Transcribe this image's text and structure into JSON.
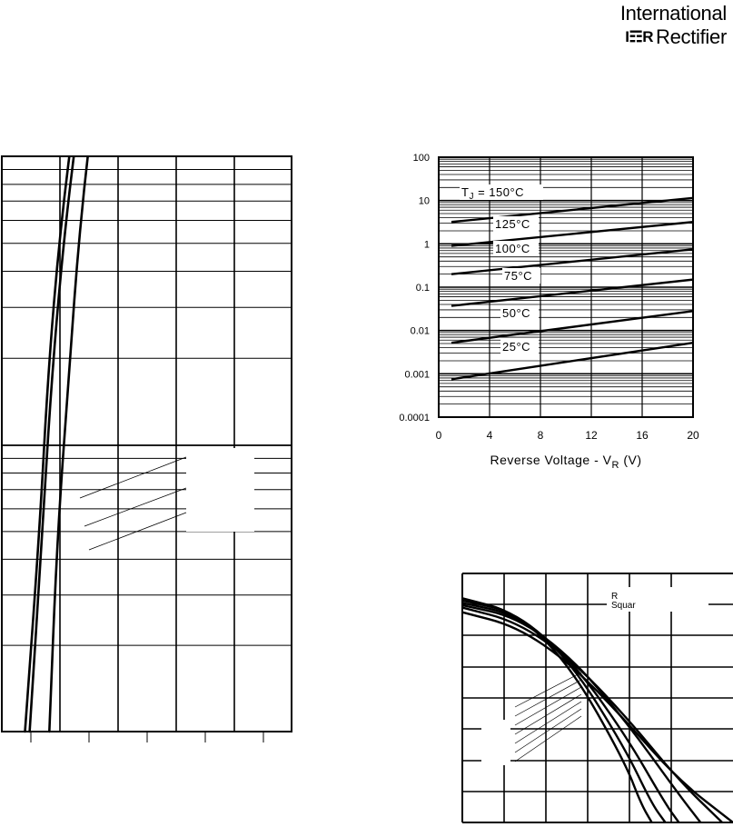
{
  "brand": {
    "line1": "International",
    "mark": "I☶R",
    "word": "Rectifier"
  },
  "chart_data": [
    {
      "type": "line",
      "description_source": "left chart (unlabeled axes)",
      "title": "",
      "xlabel": "",
      "ylabel": "",
      "series": [
        {
          "points": [
            [
              0.4,
              0.1
            ],
            [
              0.65,
              0.5
            ],
            [
              0.8,
              1.8
            ],
            [
              1.0,
              5.5
            ],
            [
              1.3,
              17
            ],
            [
              1.65,
              40
            ],
            [
              2.0,
              80
            ],
            [
              2.5,
              150
            ],
            [
              3.1,
              230
            ]
          ]
        },
        {
          "points": [
            [
              0.48,
              0.1
            ],
            [
              0.7,
              0.5
            ],
            [
              0.85,
              1.6
            ],
            [
              1.05,
              4.8
            ],
            [
              1.3,
              13
            ],
            [
              1.6,
              34
            ],
            [
              2.0,
              70
            ],
            [
              2.5,
              145
            ],
            [
              3.1,
              230
            ]
          ]
        },
        {
          "points": [
            [
              0.82,
              0.1
            ],
            [
              0.95,
              0.45
            ],
            [
              1.15,
              1.7
            ],
            [
              1.35,
              6.0
            ],
            [
              1.65,
              20
            ],
            [
              1.95,
              50
            ],
            [
              2.4,
              110
            ],
            [
              2.9,
              190
            ],
            [
              3.1,
              230
            ]
          ]
        }
      ]
    },
    {
      "type": "line",
      "title": "",
      "xlabel": "Reverse Voltage - V",
      "xlabel_sub": "R",
      "xlabel_unit": "(V)",
      "ylabel": "",
      "xlim": [
        0,
        20
      ],
      "ylim": [
        0.0001,
        100
      ],
      "yscale": "log",
      "x_ticks": [
        "0",
        "4",
        "8",
        "12",
        "16",
        "20"
      ],
      "y_ticks": [
        "100",
        "10",
        "1",
        "0.1",
        "0.01",
        "0.001",
        "0.0001"
      ],
      "grid": true,
      "annotation_prefix": "T",
      "annotation_prefix_sub": "J",
      "annotation_eq": "= ",
      "series": [
        {
          "name": "150°C",
          "x": [
            1,
            20
          ],
          "y": [
            3.2,
            11.5
          ]
        },
        {
          "name": "125°C",
          "x": [
            1,
            20
          ],
          "y": [
            0.9,
            3.2
          ]
        },
        {
          "name": "100°C",
          "x": [
            1,
            20
          ],
          "y": [
            0.2,
            0.75
          ]
        },
        {
          "name": "75°C",
          "x": [
            1,
            20
          ],
          "y": [
            0.037,
            0.15
          ]
        },
        {
          "name": "50°C",
          "x": [
            1,
            20
          ],
          "y": [
            0.0052,
            0.028
          ]
        },
        {
          "name": "25°C",
          "x": [
            1,
            20
          ],
          "y": [
            0.00075,
            0.0052
          ]
        }
      ]
    },
    {
      "type": "line",
      "description_source": "bottom-right chart (unlabeled axes)",
      "title": "",
      "labels": [
        "R",
        "Squar"
      ],
      "series": [
        {
          "points": [
            [
              0,
              0.1
            ],
            [
              20,
              0.16
            ],
            [
              40,
              0.32
            ],
            [
              60,
              0.56
            ],
            [
              80,
              0.82
            ],
            [
              100,
              1.0
            ]
          ]
        },
        {
          "points": [
            [
              0,
              0.08
            ],
            [
              20,
              0.14
            ],
            [
              40,
              0.3
            ],
            [
              60,
              0.54
            ],
            [
              80,
              0.82
            ],
            [
              96,
              1.0
            ]
          ]
        },
        {
          "points": [
            [
              0,
              0.07
            ],
            [
              20,
              0.12
            ],
            [
              40,
              0.29
            ],
            [
              60,
              0.56
            ],
            [
              80,
              0.88
            ],
            [
              88,
              1.0
            ]
          ]
        },
        {
          "points": [
            [
              0,
              0.06
            ],
            [
              20,
              0.11
            ],
            [
              40,
              0.3
            ],
            [
              60,
              0.62
            ],
            [
              75,
              0.92
            ],
            [
              80,
              1.0
            ]
          ]
        },
        {
          "points": [
            [
              0,
              0.05
            ],
            [
              20,
              0.1
            ],
            [
              40,
              0.31
            ],
            [
              60,
              0.68
            ],
            [
              70,
              0.92
            ],
            [
              75,
              1.0
            ]
          ]
        },
        {
          "points": [
            [
              0,
              0.04
            ],
            [
              20,
              0.1
            ],
            [
              40,
              0.33
            ],
            [
              60,
              0.74
            ],
            [
              66,
              0.92
            ],
            [
              70,
              1.0
            ]
          ]
        }
      ]
    }
  ]
}
